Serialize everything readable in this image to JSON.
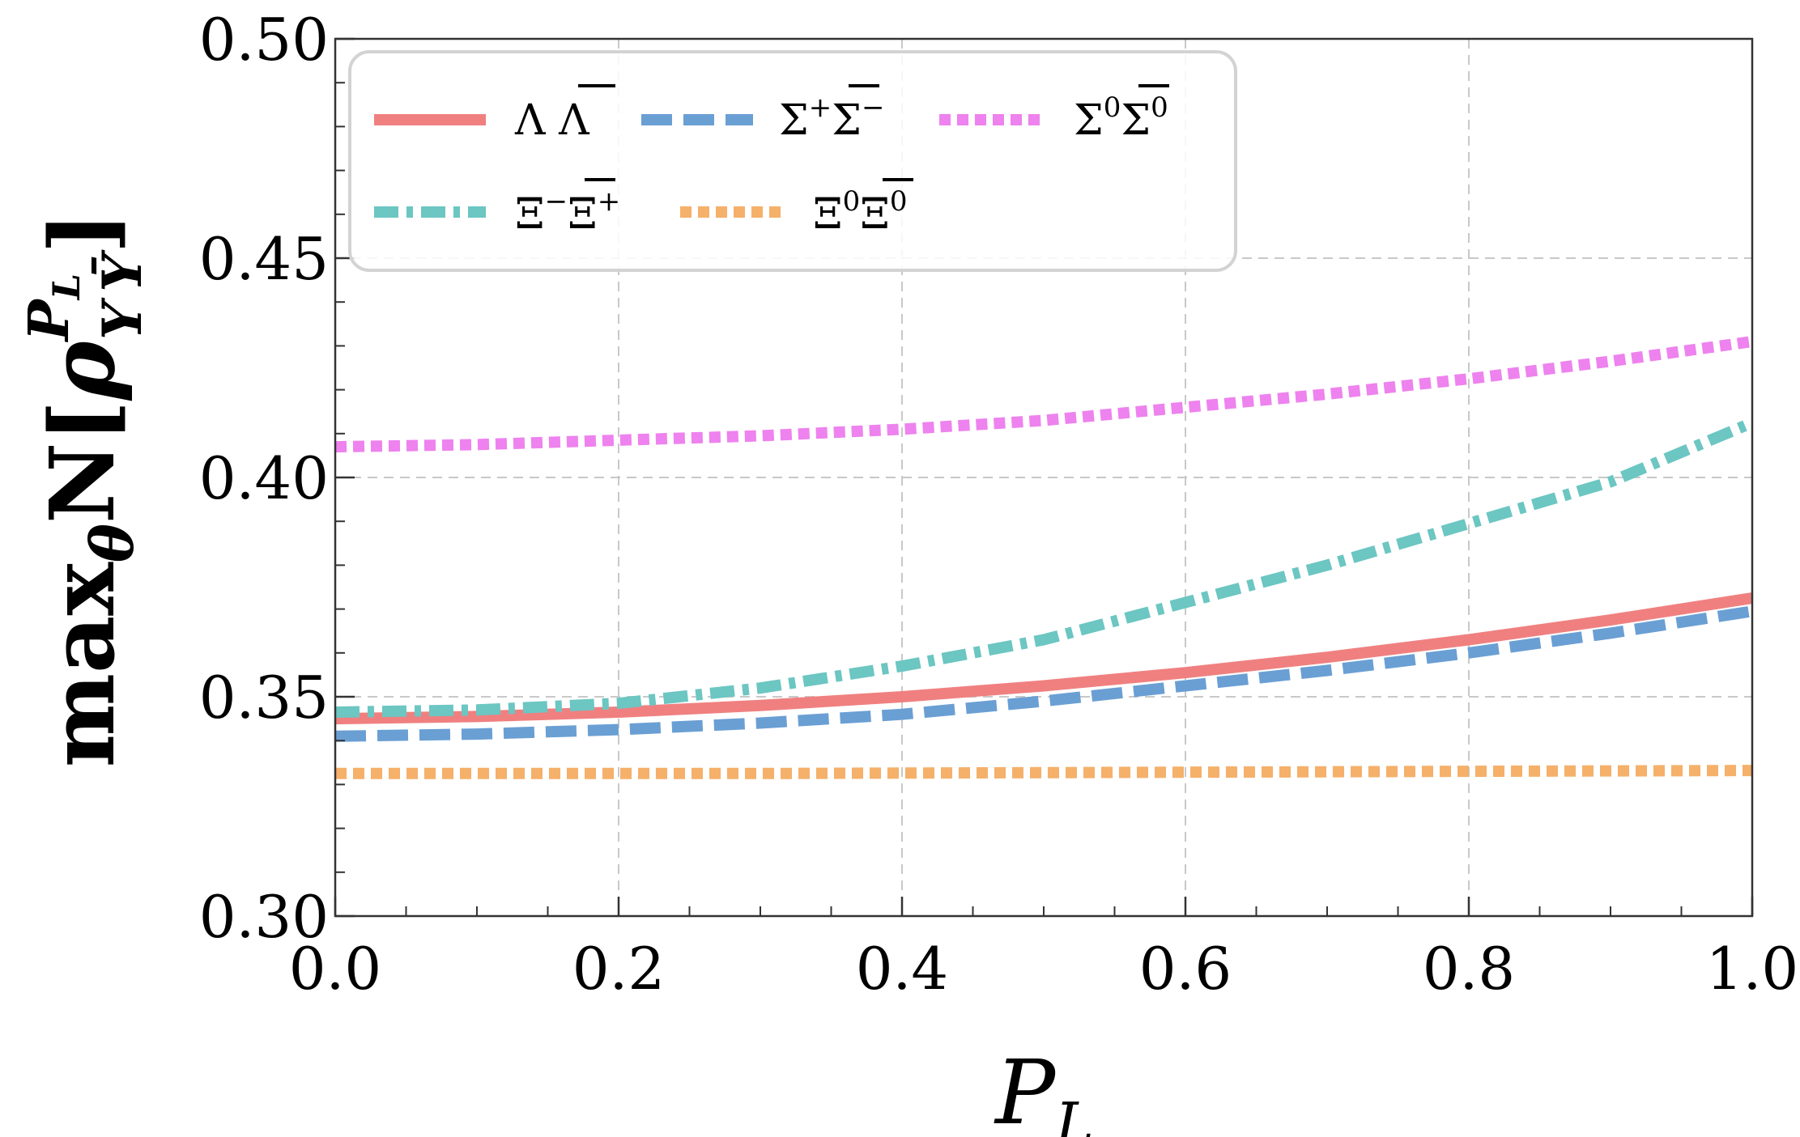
{
  "chart_data": {
    "type": "line",
    "xlabel": "P_L",
    "ylabel": "max_θ N[ρ^{P_L}_{Y Ȳ}]",
    "xlim": [
      0.0,
      1.0
    ],
    "ylim": [
      0.3,
      0.5
    ],
    "x_ticks": [
      0.0,
      0.2,
      0.4,
      0.6,
      0.8,
      1.0
    ],
    "x_tick_labels": [
      "0.0",
      "0.2",
      "0.4",
      "0.6",
      "0.8",
      "1.0"
    ],
    "y_ticks": [
      0.3,
      0.35,
      0.4,
      0.45,
      0.5
    ],
    "y_tick_labels": [
      "0.30",
      "0.35",
      "0.40",
      "0.45",
      "0.50"
    ],
    "grid": true,
    "legend_position": "top-left",
    "x": [
      0.0,
      0.1,
      0.2,
      0.3,
      0.4,
      0.5,
      0.6,
      0.7,
      0.8,
      0.9,
      1.0
    ],
    "series": [
      {
        "name": "ΛΛ̄",
        "legend_main": "Λ Λ",
        "style": "solid",
        "color": "#F08080",
        "values": [
          0.345,
          0.3455,
          0.3465,
          0.348,
          0.35,
          0.3525,
          0.3555,
          0.359,
          0.363,
          0.3675,
          0.3725
        ]
      },
      {
        "name": "Σ⁺Σ̄⁻",
        "legend_main": "Σ",
        "legend_sup1": "+",
        "legend_bar": "Σ",
        "legend_sup2": "−",
        "style": "dashed",
        "color": "#6A9FD4",
        "values": [
          0.341,
          0.3415,
          0.3425,
          0.344,
          0.346,
          0.349,
          0.3525,
          0.356,
          0.36,
          0.3645,
          0.3695
        ]
      },
      {
        "name": "Σ⁰Σ̄⁰",
        "legend_main": "Σ",
        "legend_sup1": "0",
        "legend_bar": "Σ",
        "legend_sup2": "0",
        "style": "dotted",
        "color": "#EE82EE",
        "values": [
          0.407,
          0.4075,
          0.4085,
          0.4095,
          0.411,
          0.413,
          0.416,
          0.419,
          0.4225,
          0.4265,
          0.431
        ]
      },
      {
        "name": "Ξ⁻Ξ̄⁺",
        "legend_main": "Ξ",
        "legend_sup1": "−",
        "legend_bar": "Ξ",
        "legend_sup2": "+",
        "style": "dashdot",
        "color": "#6CC6C2",
        "values": [
          0.3465,
          0.347,
          0.3485,
          0.352,
          0.357,
          0.363,
          0.3715,
          0.38,
          0.3895,
          0.399,
          0.4125
        ]
      },
      {
        "name": "Ξ⁰Ξ̄⁰",
        "legend_main": "Ξ",
        "legend_sup1": "0",
        "legend_bar": "Ξ",
        "legend_sup2": "0",
        "style": "dotted",
        "color": "#F5B06A",
        "values": [
          0.3325,
          0.3325,
          0.3325,
          0.3325,
          0.3326,
          0.3327,
          0.3328,
          0.3329,
          0.333,
          0.3331,
          0.3332
        ]
      }
    ]
  },
  "labels": {
    "ylabel_max": "max",
    "ylabel_theta": "θ",
    "ylabel_N": "N",
    "ylabel_open": "[",
    "ylabel_rho": "ρ",
    "ylabel_sup_P": "P",
    "ylabel_sup_L": "L",
    "ylabel_sub_Y": "Y",
    "ylabel_sub_Ybar": "Ȳ",
    "ylabel_close": "]",
    "xlabel_P": "P",
    "xlabel_L": "L"
  }
}
